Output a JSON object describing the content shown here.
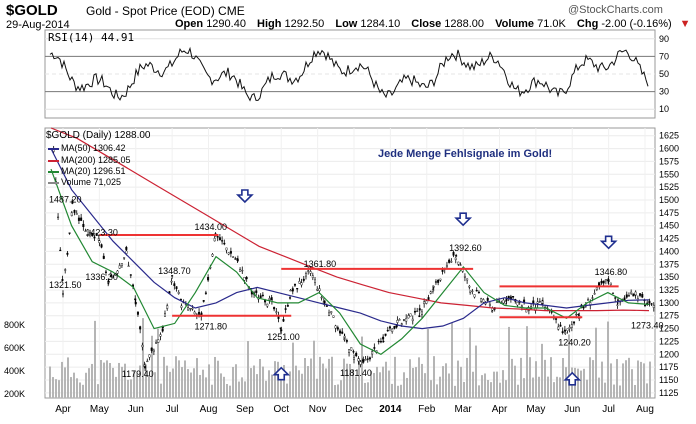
{
  "header": {
    "symbol": "$GOLD",
    "name": "Gold - Spot Price (EOD)",
    "exchange": "CME",
    "date": "29-Aug-2014",
    "quote": {
      "open_label": "Open",
      "open": "1290.40",
      "high_label": "High",
      "high": "1292.50",
      "low_label": "Low",
      "low": "1284.10",
      "close_label": "Close",
      "close": "1288.00",
      "volume_label": "Volume",
      "volume": "71.0K",
      "chg_label": "Chg",
      "chg": "-2.00 (-0.16%)"
    },
    "logo": "@StockCharts.com"
  },
  "rsi": {
    "label": "RSI(14) 44.91",
    "ticks": [
      "90",
      "70",
      "50",
      "30",
      "10"
    ]
  },
  "legend": {
    "title": "$GOLD (Daily) 1288.00",
    "items": [
      {
        "name": "MA(50) 1306.42",
        "color": "#2a2a8c"
      },
      {
        "name": "MA(200) 1285.05",
        "color": "#cc2233"
      },
      {
        "name": "MA(20) 1296.51",
        "color": "#228833"
      },
      {
        "name": "Volume 71,025",
        "color": "#888888"
      }
    ]
  },
  "annotation": "Jede Menge Fehlsignale im Gold!",
  "colors": {
    "up": "#228833",
    "down": "#cc2222",
    "resistance": "#ee3333",
    "arrow": "#1f2f8f"
  },
  "chart_data": {
    "type": "candlestick",
    "y_ticks": [
      1625,
      1600,
      1575,
      1550,
      1525,
      1500,
      1475,
      1450,
      1425,
      1400,
      1375,
      1350,
      1325,
      1300,
      1275,
      1250,
      1225,
      1200,
      1175,
      1150,
      1125
    ],
    "ylim": [
      1115,
      1640
    ],
    "volume_ticks": [
      "800K",
      "600K",
      "400K",
      "200K"
    ],
    "volume_ylim": [
      0,
      1000
    ],
    "x_labels": [
      "Apr",
      "May",
      "Jun",
      "Jul",
      "Aug",
      "Sep",
      "Oct",
      "Nov",
      "Dec",
      "2014",
      "Feb",
      "Mar",
      "Apr",
      "May",
      "Jun",
      "Jul",
      "Aug"
    ],
    "price_path": [
      [
        "Apr 2013",
        1600
      ],
      [
        "Apr 2013",
        1321.5
      ],
      [
        "Apr 2013",
        1487.2
      ],
      [
        "May 2013",
        1430
      ],
      [
        "May 2013",
        1423.3
      ],
      [
        "May 2013",
        1336.3
      ],
      [
        "Jun 2013",
        1400
      ],
      [
        "Jun 2013",
        1300
      ],
      [
        "Jun 2013",
        1179.4
      ],
      [
        "Jul 2013",
        1250
      ],
      [
        "Jul 2013",
        1348.7
      ],
      [
        "Jul 2013",
        1300
      ],
      [
        "Aug 2013",
        1271.8
      ],
      [
        "Aug 2013",
        1434
      ],
      [
        "Sep 2013",
        1380
      ],
      [
        "Sep 2013",
        1320
      ],
      [
        "Oct 2013",
        1300
      ],
      [
        "Oct 2013",
        1251
      ],
      [
        "Oct 2013",
        1320
      ],
      [
        "Nov 2013",
        1361.8
      ],
      [
        "Nov 2013",
        1300
      ],
      [
        "Dec 2013",
        1230
      ],
      [
        "Dec 2013",
        1200
      ],
      [
        "Dec 2013",
        1181.4
      ],
      [
        "Jan 2014",
        1230
      ],
      [
        "Jan 2014",
        1260
      ],
      [
        "Feb 2014",
        1280
      ],
      [
        "Feb 2014",
        1330
      ],
      [
        "Mar 2014",
        1392.6
      ],
      [
        "Mar 2014",
        1330
      ],
      [
        "Apr 2014",
        1290
      ],
      [
        "Apr 2014",
        1310
      ],
      [
        "May 2014",
        1290
      ],
      [
        "May 2014",
        1300
      ],
      [
        "Jun 2014",
        1240.2
      ],
      [
        "Jun 2014",
        1280
      ],
      [
        "Jul 2014",
        1330
      ],
      [
        "Jul 2014",
        1346.8
      ],
      [
        "Jul 2014",
        1300
      ],
      [
        "Aug 2014",
        1320
      ],
      [
        "Aug 2014",
        1300
      ],
      [
        "Aug 2014",
        1288
      ]
    ],
    "ma50": [
      1600,
      1520,
      1470,
      1420,
      1380,
      1340,
      1310,
      1290,
      1300,
      1320,
      1330,
      1320,
      1310,
      1300,
      1290,
      1280,
      1265,
      1255,
      1250,
      1255,
      1270,
      1300,
      1310,
      1300,
      1295,
      1290,
      1295,
      1300,
      1305,
      1306
    ],
    "ma200": [
      1640,
      1620,
      1590,
      1560,
      1530,
      1500,
      1470,
      1440,
      1410,
      1390,
      1370,
      1350,
      1335,
      1320,
      1310,
      1300,
      1295,
      1290,
      1288,
      1285,
      1285,
      1285,
      1286,
      1285
    ],
    "ma20": [
      1560,
      1450,
      1380,
      1360,
      1330,
      1250,
      1260,
      1320,
      1390,
      1360,
      1310,
      1300,
      1300,
      1320,
      1280,
      1220,
      1200,
      1230,
      1270,
      1320,
      1370,
      1320,
      1295,
      1290,
      1290,
      1270,
      1300,
      1320,
      1300,
      1297
    ],
    "labels": [
      {
        "text": "1487.20",
        "x": "Apr 2013",
        "y": 1487.2
      },
      {
        "text": "1321.50",
        "x": "Apr 2013",
        "y": 1321.5
      },
      {
        "text": "1423.30",
        "x": "May 2013",
        "y": 1423.3
      },
      {
        "text": "1336.30",
        "x": "May 2013",
        "y": 1336.3
      },
      {
        "text": "1348.70",
        "x": "Jul 2013",
        "y": 1348.7
      },
      {
        "text": "1179.40",
        "x": "Jun 2013",
        "y": 1179.4
      },
      {
        "text": "1271.80",
        "x": "Aug 2013",
        "y": 1271.8
      },
      {
        "text": "1434.00",
        "x": "Aug 2013",
        "y": 1434.0
      },
      {
        "text": "1361.80",
        "x": "Nov 2013",
        "y": 1361.8
      },
      {
        "text": "1251.00",
        "x": "Oct 2013",
        "y": 1251.0
      },
      {
        "text": "1181.40",
        "x": "Dec 2013",
        "y": 1181.4
      },
      {
        "text": "1392.60",
        "x": "Mar 2014",
        "y": 1392.6
      },
      {
        "text": "1346.80",
        "x": "Jul 2014",
        "y": 1346.8
      },
      {
        "text": "1240.20",
        "x": "Jun 2014",
        "y": 1240.2
      },
      {
        "text": "1273.40",
        "x": "Aug 2014",
        "y": 1273.4
      }
    ],
    "resistance": [
      {
        "from": "May 2013",
        "to": "Aug 2013",
        "y": 1432
      },
      {
        "from": "Jul 2013",
        "to": "Oct 2013",
        "y": 1275
      },
      {
        "from": "Oct 2013",
        "to": "Mar 2014",
        "y": 1366
      },
      {
        "from": "Apr 2014",
        "to": "Jul 2014",
        "y": 1332
      },
      {
        "from": "Apr 2014",
        "to": "Jun 2014",
        "y": 1272
      }
    ],
    "arrows_down": [
      {
        "x": "Sep 2013",
        "y": 1500
      },
      {
        "x": "Mar 2014",
        "y": 1455
      },
      {
        "x": "Jul 2014",
        "y": 1410
      }
    ],
    "arrows_up": [
      {
        "x": "Oct 2013",
        "y": 1170
      },
      {
        "x": "Jun 2014",
        "y": 1160
      }
    ],
    "rsi_range": [
      0,
      100
    ]
  }
}
